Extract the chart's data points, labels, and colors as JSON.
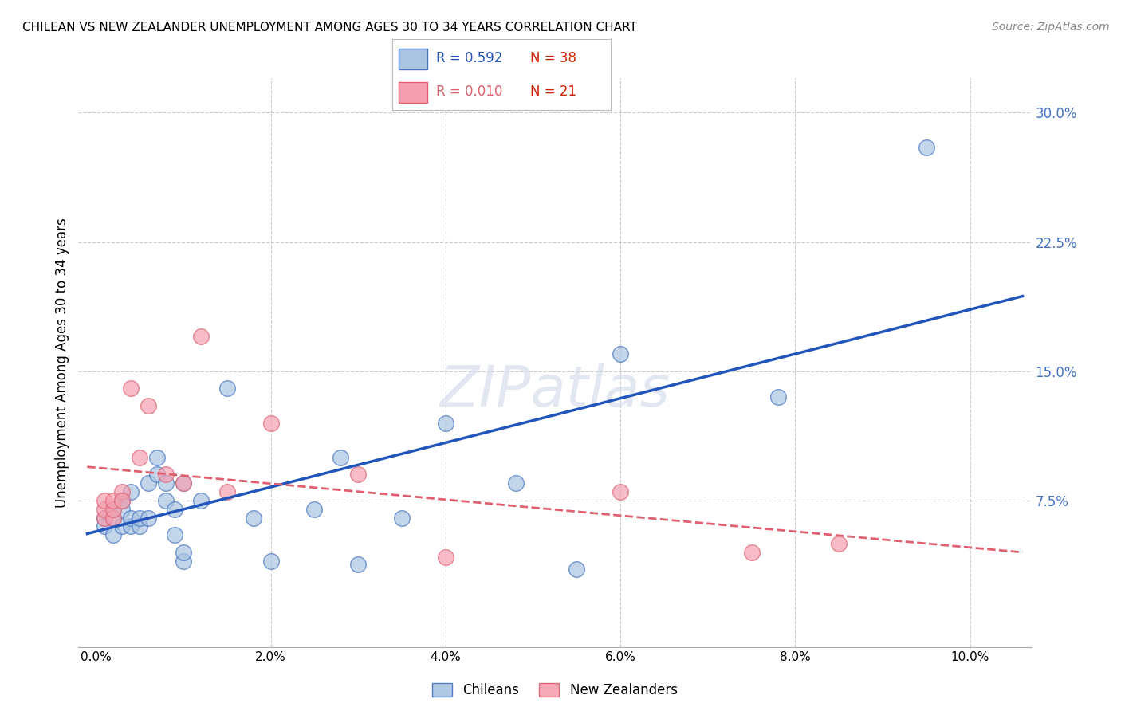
{
  "title": "CHILEAN VS NEW ZEALANDER UNEMPLOYMENT AMONG AGES 30 TO 34 YEARS CORRELATION CHART",
  "source": "Source: ZipAtlas.com",
  "ylabel": "Unemployment Among Ages 30 to 34 years",
  "xlabel_ticks": [
    "0.0%",
    "2.0%",
    "4.0%",
    "6.0%",
    "8.0%",
    "10.0%"
  ],
  "xlabel_vals": [
    0.0,
    0.02,
    0.04,
    0.06,
    0.08,
    0.1
  ],
  "ylabel_ticks": [
    "7.5%",
    "15.0%",
    "22.5%",
    "30.0%"
  ],
  "ylabel_vals": [
    0.075,
    0.15,
    0.225,
    0.3
  ],
  "xlim": [
    -0.002,
    0.107
  ],
  "ylim": [
    -0.01,
    0.32
  ],
  "blue_color": "#a8c4e0",
  "pink_color": "#f4a0b0",
  "blue_edge_color": "#4472c4",
  "pink_edge_color": "#e06070",
  "blue_line_color": "#2255bb",
  "pink_line_color": "#e06070",
  "grid_color": "#cccccc",
  "right_axis_color": "#4472c4",
  "watermark": "ZIPatlas",
  "legend_R_blue": "R = 0.592",
  "legend_N_blue": "N = 38",
  "legend_R_pink": "R = 0.010",
  "legend_N_pink": "N = 21",
  "chileans_x": [
    0.001,
    0.001,
    0.002,
    0.002,
    0.002,
    0.003,
    0.003,
    0.003,
    0.004,
    0.004,
    0.004,
    0.005,
    0.005,
    0.006,
    0.006,
    0.007,
    0.007,
    0.008,
    0.008,
    0.009,
    0.009,
    0.01,
    0.01,
    0.01,
    0.012,
    0.015,
    0.018,
    0.02,
    0.025,
    0.028,
    0.03,
    0.035,
    0.04,
    0.048,
    0.055,
    0.06,
    0.078,
    0.095
  ],
  "chileans_y": [
    0.065,
    0.06,
    0.055,
    0.065,
    0.07,
    0.06,
    0.07,
    0.075,
    0.06,
    0.065,
    0.08,
    0.06,
    0.065,
    0.065,
    0.085,
    0.09,
    0.1,
    0.085,
    0.075,
    0.055,
    0.07,
    0.04,
    0.045,
    0.085,
    0.075,
    0.14,
    0.065,
    0.04,
    0.07,
    0.1,
    0.038,
    0.065,
    0.12,
    0.085,
    0.035,
    0.16,
    0.135,
    0.28
  ],
  "nz_x": [
    0.001,
    0.001,
    0.001,
    0.002,
    0.002,
    0.002,
    0.003,
    0.003,
    0.004,
    0.005,
    0.006,
    0.008,
    0.01,
    0.012,
    0.015,
    0.02,
    0.03,
    0.04,
    0.06,
    0.075,
    0.085
  ],
  "nz_y": [
    0.065,
    0.07,
    0.075,
    0.065,
    0.07,
    0.075,
    0.08,
    0.075,
    0.14,
    0.1,
    0.13,
    0.09,
    0.085,
    0.17,
    0.08,
    0.12,
    0.09,
    0.042,
    0.08,
    0.045,
    0.05
  ]
}
